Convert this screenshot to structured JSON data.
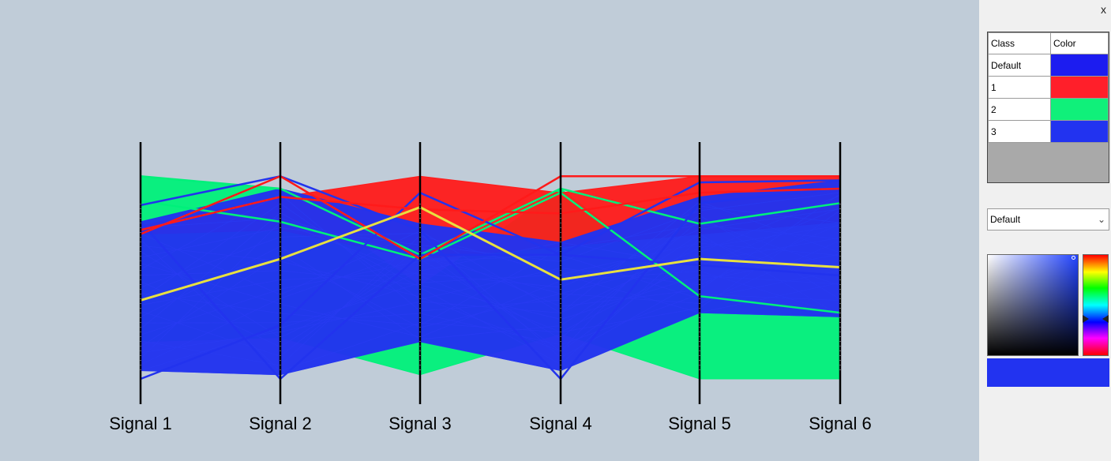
{
  "plot": {
    "axes": [
      "Signal 1",
      "Signal 2",
      "Signal 3",
      "Signal 4",
      "Signal 5",
      "Signal 6"
    ],
    "background": "#c0ccd8"
  },
  "chart_data": {
    "type": "parallel-coordinates",
    "dimensions": [
      "Signal 1",
      "Signal 2",
      "Signal 3",
      "Signal 4",
      "Signal 5",
      "Signal 6"
    ],
    "ylim": [
      0,
      1
    ],
    "series": [
      {
        "name": "1",
        "color": "#ff1a1a",
        "band_low": [
          0.7,
          0.72,
          0.58,
          0.64,
          0.7,
          0.76
        ],
        "band_high": [
          0.74,
          0.88,
          0.98,
          0.9,
          0.98,
          0.98
        ]
      },
      {
        "name": "2",
        "color": "#00f07a",
        "band_low": [
          0.18,
          0.2,
          0.02,
          0.22,
          0.0,
          0.0
        ],
        "band_high": [
          0.98,
          0.92,
          0.45,
          0.92,
          0.4,
          0.32
        ]
      },
      {
        "name": "3",
        "color": "#2233ee",
        "band_low": [
          0.04,
          0.02,
          0.18,
          0.04,
          0.32,
          0.3
        ],
        "band_high": [
          0.76,
          0.92,
          0.75,
          0.66,
          0.88,
          0.96
        ]
      }
    ],
    "lines": [
      {
        "class": "2",
        "values": [
          0.98,
          0.92,
          0.6,
          0.92,
          0.75,
          0.85
        ]
      },
      {
        "class": "2",
        "values": [
          0.86,
          0.76,
          0.58,
          0.9,
          0.4,
          0.32
        ]
      },
      {
        "class": "3",
        "values": [
          0.84,
          0.98,
          0.72,
          0.0,
          0.85,
          0.92
        ]
      },
      {
        "class": "3",
        "values": [
          0.76,
          0.0,
          0.6,
          0.6,
          0.95,
          0.96
        ]
      },
      {
        "class": "3",
        "values": [
          0.0,
          0.26,
          0.9,
          0.6,
          0.55,
          0.5
        ]
      },
      {
        "class": "1",
        "values": [
          0.7,
          0.98,
          0.58,
          0.98,
          0.98,
          0.98
        ]
      },
      {
        "class": "1",
        "values": [
          0.72,
          0.88,
          0.82,
          0.8,
          0.9,
          0.92
        ]
      }
    ],
    "highlighted": {
      "color": "#e8e040",
      "values": [
        0.38,
        0.58,
        0.83,
        0.48,
        0.58,
        0.54
      ]
    }
  },
  "panel": {
    "close": "x",
    "table": {
      "headers": [
        "Class",
        "Color"
      ],
      "rows": [
        {
          "name": "Default",
          "color": "#1c1cf0"
        },
        {
          "name": "1",
          "color": "#ff1f2a"
        },
        {
          "name": "2",
          "color": "#10f07a"
        },
        {
          "name": "3",
          "color": "#2233f0"
        }
      ]
    },
    "select_value": "Default",
    "picker_hue_color": "#2244ff",
    "preview_color": "#2233f0"
  }
}
